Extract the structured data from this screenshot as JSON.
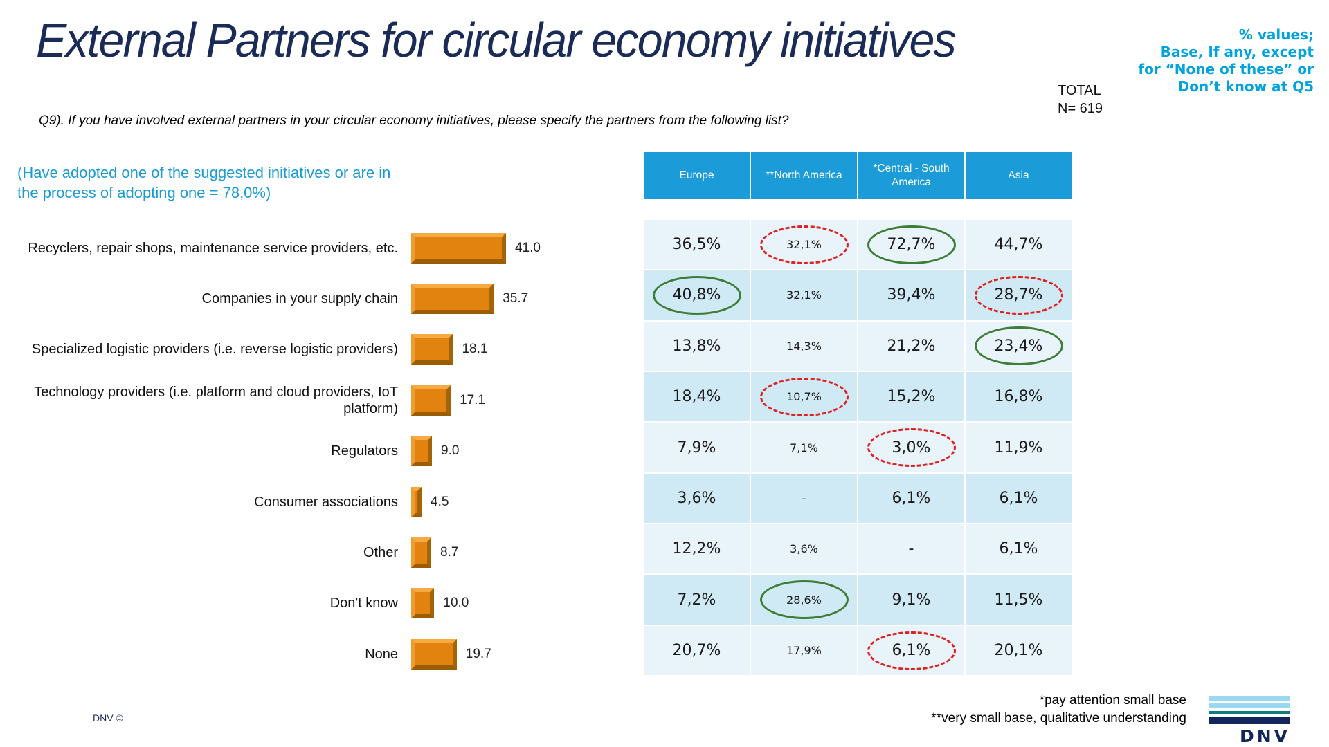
{
  "slide": {
    "title": "External Partners for circular economy initiatives",
    "percent_note": [
      "% values;",
      "Base, If any, except",
      "for “None of these” or",
      "Don’t know at Q5"
    ],
    "total": [
      "TOTAL",
      "N= 619"
    ],
    "question": "Q9). If you have involved external partners in your circular economy initiatives, please specify the partners from the following list?",
    "adoption_note": [
      "(Have adopted one of the suggested initiatives or are in",
      "the process of adopting one = 78,0%)"
    ],
    "footnotes": [
      "*pay attention small base",
      "**very small base, qualitative understanding"
    ],
    "copyright": "DNV ©",
    "logo_text": "DNV"
  },
  "colors": {
    "title_navy": "#1a2b57",
    "cyan_note": "#00a3e0",
    "adoption_cyan": "#189cd6",
    "table_header_blue": "#1b9bd7",
    "row_light": "#e8f3fa",
    "row_dark": "#cfe9f5",
    "bar_orange": "#e2830f",
    "circle_green": "#3e7d38",
    "circle_red": "#e01f1f"
  },
  "chart_data": [
    {
      "type": "bar",
      "orientation": "horizontal",
      "title": "",
      "xlabel": "",
      "ylabel": "",
      "xlim": [
        0,
        45
      ],
      "grid": false,
      "bar_color": "#e2830f",
      "categories": [
        "Recyclers, repair shops, maintenance service providers, etc.",
        "Companies in your supply chain",
        "Specialized logistic providers (i.e. reverse logistic providers)",
        "Technology providers (i.e. platform and cloud providers, IoT platform)",
        "Regulators",
        "Consumer associations",
        "Other",
        "Don't know",
        "None"
      ],
      "values": [
        41.0,
        35.7,
        18.1,
        17.1,
        9.0,
        4.5,
        8.7,
        10.0,
        19.7
      ],
      "value_labels": [
        "41.0",
        "35.7",
        "18.1",
        "17.1",
        "9.0",
        "4.5",
        "8.7",
        "10.0",
        "19.7"
      ]
    },
    {
      "type": "table",
      "columns": [
        "Europe",
        "**North America",
        "*Central - South America",
        "Asia"
      ],
      "row_labels": [
        "Recyclers, repair shops, maintenance service providers, etc.",
        "Companies in your supply chain",
        "Specialized logistic providers (i.e. reverse logistic providers)",
        "Technology providers (i.e. platform and cloud providers, IoT platform)",
        "Regulators",
        "Consumer associations",
        "Other",
        "Don't know",
        "None"
      ],
      "cells": [
        [
          "36,5%",
          "32,1%",
          "72,7%",
          "44,7%"
        ],
        [
          "40,8%",
          "32,1%",
          "39,4%",
          "28,7%"
        ],
        [
          "13,8%",
          "14,3%",
          "21,2%",
          "23,4%"
        ],
        [
          "18,4%",
          "10,7%",
          "15,2%",
          "16,8%"
        ],
        [
          "7,9%",
          "7,1%",
          "3,0%",
          "11,9%"
        ],
        [
          "3,6%",
          "-",
          "6,1%",
          "6,1%"
        ],
        [
          "12,2%",
          "3,6%",
          "-",
          "6,1%"
        ],
        [
          "7,2%",
          "28,6%",
          "9,1%",
          "11,5%"
        ],
        [
          "20,7%",
          "17,9%",
          "6,1%",
          "20,1%"
        ]
      ],
      "marks": [
        [
          null,
          "red",
          "green",
          null
        ],
        [
          "green",
          null,
          null,
          "red"
        ],
        [
          null,
          null,
          null,
          "green"
        ],
        [
          null,
          "red",
          null,
          null
        ],
        [
          null,
          null,
          "red",
          null
        ],
        [
          null,
          null,
          null,
          null
        ],
        [
          null,
          null,
          null,
          null
        ],
        [
          null,
          "green",
          null,
          null
        ],
        [
          null,
          null,
          "red",
          null
        ]
      ],
      "mark_legend": {
        "green": "significantly high / positive highlight",
        "red": "significantly low / attention highlight"
      }
    }
  ]
}
